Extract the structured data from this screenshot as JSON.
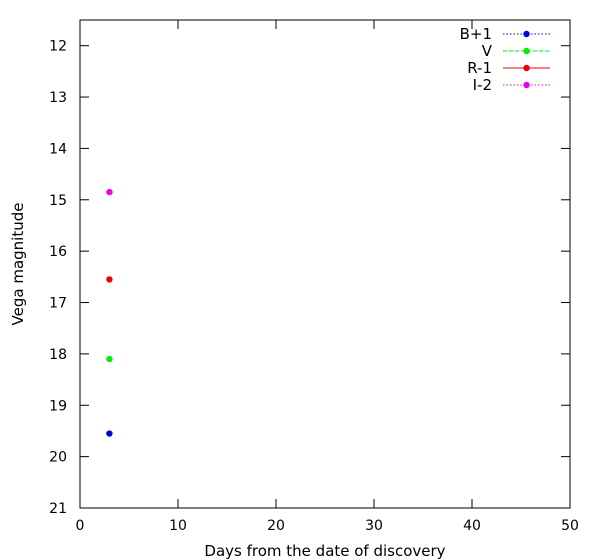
{
  "chart_data": {
    "type": "scatter",
    "title": "",
    "xlabel": "Days from the date of discovery",
    "ylabel": "Vega magnitude",
    "xlim": [
      0,
      50
    ],
    "ylim": [
      21,
      11.5
    ],
    "y_inverted": true,
    "xticks": [
      0,
      10,
      20,
      30,
      40,
      50
    ],
    "yticks": [
      12,
      13,
      14,
      15,
      16,
      17,
      18,
      19,
      20,
      21
    ],
    "grid": false,
    "legend_position": "top-right",
    "series": [
      {
        "name": "B+1",
        "color": "#0000dd",
        "line_style": "dotted",
        "x": [
          3.0
        ],
        "y": [
          19.55
        ]
      },
      {
        "name": "V",
        "color": "#00ee00",
        "line_style": "dashed",
        "x": [
          3.0
        ],
        "y": [
          18.1
        ]
      },
      {
        "name": "R-1",
        "color": "#ee0000",
        "line_style": "solid",
        "x": [
          3.0
        ],
        "y": [
          16.55
        ]
      },
      {
        "name": "I-2",
        "color": "#ee00ee",
        "line_style": "dotted",
        "x": [
          3.0
        ],
        "y": [
          14.85
        ]
      }
    ]
  }
}
